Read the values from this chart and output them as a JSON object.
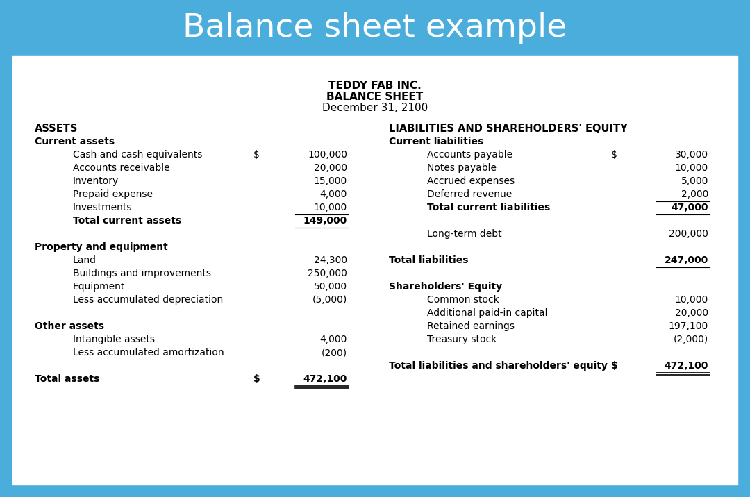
{
  "title_banner": "Balance sheet example",
  "title_banner_bg": "#4aaddc",
  "title_banner_color": "#ffffff",
  "body_bg": "#ffffff",
  "company_line1": "TEDDY FAB INC.",
  "company_line2": "BALANCE SHEET",
  "company_line3": "December 31, 2100",
  "left_col": {
    "sections": [
      {
        "label": "ASSETS",
        "style": "header",
        "indent": 0
      },
      {
        "label": "Current assets",
        "style": "subheader",
        "indent": 0
      },
      {
        "label": "Cash and cash equivalents",
        "style": "item",
        "indent": 1,
        "dollar": true,
        "value": "100,000"
      },
      {
        "label": "Accounts receivable",
        "style": "item",
        "indent": 1,
        "dollar": false,
        "value": "20,000"
      },
      {
        "label": "Inventory",
        "style": "item",
        "indent": 1,
        "dollar": false,
        "value": "15,000"
      },
      {
        "label": "Prepaid expense",
        "style": "item",
        "indent": 1,
        "dollar": false,
        "value": "4,000"
      },
      {
        "label": "Investments",
        "style": "item_underline",
        "indent": 1,
        "dollar": false,
        "value": "10,000"
      },
      {
        "label": "Total current assets",
        "style": "total_single",
        "indent": 1,
        "dollar": false,
        "value": "149,000"
      },
      {
        "label": "",
        "style": "blank",
        "indent": 0,
        "dollar": false,
        "value": ""
      },
      {
        "label": "Property and equipment",
        "style": "subheader",
        "indent": 0
      },
      {
        "label": "Land",
        "style": "item",
        "indent": 1,
        "dollar": false,
        "value": "24,300"
      },
      {
        "label": "Buildings and improvements",
        "style": "item",
        "indent": 1,
        "dollar": false,
        "value": "250,000"
      },
      {
        "label": "Equipment",
        "style": "item",
        "indent": 1,
        "dollar": false,
        "value": "50,000"
      },
      {
        "label": "Less accumulated depreciation",
        "style": "item",
        "indent": 1,
        "dollar": false,
        "value": "(5,000)"
      },
      {
        "label": "",
        "style": "blank",
        "indent": 0,
        "dollar": false,
        "value": ""
      },
      {
        "label": "Other assets",
        "style": "subheader",
        "indent": 0
      },
      {
        "label": "Intangible assets",
        "style": "item",
        "indent": 1,
        "dollar": false,
        "value": "4,000"
      },
      {
        "label": "Less accumulated amortization",
        "style": "item",
        "indent": 1,
        "dollar": false,
        "value": "(200)"
      },
      {
        "label": "",
        "style": "blank",
        "indent": 0,
        "dollar": false,
        "value": ""
      },
      {
        "label": "Total assets",
        "style": "total_double",
        "indent": 0,
        "dollar": true,
        "value": "472,100"
      }
    ]
  },
  "right_col": {
    "sections": [
      {
        "label": "LIABILITIES AND SHAREHOLDERS' EQUITY",
        "style": "header",
        "indent": 0
      },
      {
        "label": "Current liabilities",
        "style": "subheader",
        "indent": 0
      },
      {
        "label": "Accounts payable",
        "style": "item",
        "indent": 1,
        "dollar": true,
        "value": "30,000"
      },
      {
        "label": "Notes payable",
        "style": "item",
        "indent": 1,
        "dollar": false,
        "value": "10,000"
      },
      {
        "label": "Accrued expenses",
        "style": "item",
        "indent": 1,
        "dollar": false,
        "value": "5,000"
      },
      {
        "label": "Deferred revenue",
        "style": "item_underline",
        "indent": 1,
        "dollar": false,
        "value": "2,000"
      },
      {
        "label": "Total current liabilities",
        "style": "total_single",
        "indent": 1,
        "dollar": false,
        "value": "47,000"
      },
      {
        "label": "",
        "style": "blank",
        "indent": 0,
        "dollar": false,
        "value": ""
      },
      {
        "label": "Long-term debt",
        "style": "item",
        "indent": 1,
        "dollar": false,
        "value": "200,000"
      },
      {
        "label": "",
        "style": "blank",
        "indent": 0,
        "dollar": false,
        "value": ""
      },
      {
        "label": "Total liabilities",
        "style": "total_single",
        "indent": 0,
        "dollar": false,
        "value": "247,000"
      },
      {
        "label": "",
        "style": "blank",
        "indent": 0,
        "dollar": false,
        "value": ""
      },
      {
        "label": "Shareholders' Equity",
        "style": "subheader",
        "indent": 0
      },
      {
        "label": "Common stock",
        "style": "item",
        "indent": 1,
        "dollar": false,
        "value": "10,000"
      },
      {
        "label": "Additional paid-in capital",
        "style": "item",
        "indent": 1,
        "dollar": false,
        "value": "20,000"
      },
      {
        "label": "Retained earnings",
        "style": "item",
        "indent": 1,
        "dollar": false,
        "value": "197,100"
      },
      {
        "label": "Treasury stock",
        "style": "item",
        "indent": 1,
        "dollar": false,
        "value": "(2,000)"
      },
      {
        "label": "",
        "style": "blank",
        "indent": 0,
        "dollar": false,
        "value": ""
      },
      {
        "label": "Total liabilities and shareholders' equity",
        "style": "total_double",
        "indent": 0,
        "dollar": true,
        "value": "472,100"
      }
    ]
  }
}
